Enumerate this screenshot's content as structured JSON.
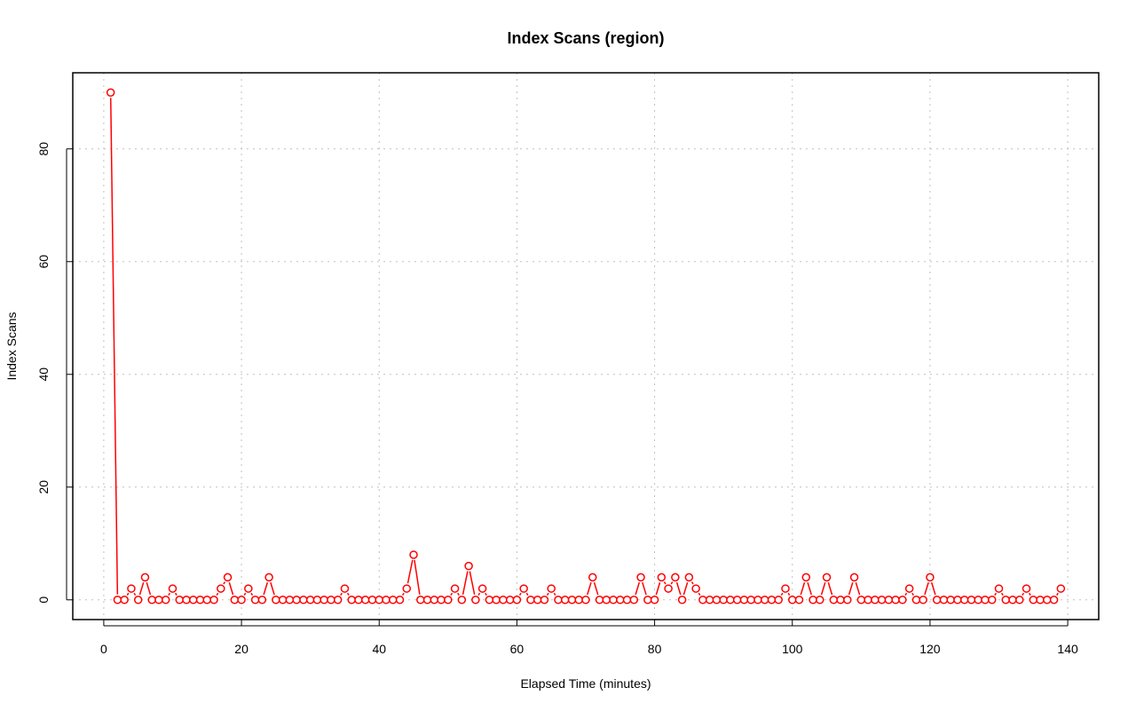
{
  "chart_data": {
    "type": "line",
    "title": "Index Scans (region)",
    "xlabel": "Elapsed Time (minutes)",
    "ylabel": "Index Scans",
    "xlim": [
      -4.5,
      144.5
    ],
    "ylim": [
      -3.5,
      93.5
    ],
    "x_ticks": [
      0,
      20,
      40,
      60,
      80,
      100,
      120,
      140
    ],
    "y_ticks": [
      0,
      20,
      40,
      60,
      80
    ],
    "grid": true,
    "colors": {
      "series": "#ff0000",
      "grid": "#c0c0c0",
      "frame": "#000000"
    },
    "series": [
      {
        "x": [
          1,
          2,
          3,
          4,
          5,
          6,
          7,
          8,
          9,
          10,
          11,
          12,
          13,
          14,
          15,
          16,
          17,
          18,
          19,
          20,
          21,
          22,
          23,
          24,
          25,
          26,
          27,
          28,
          29,
          30,
          31,
          32,
          33,
          34,
          35,
          36,
          37,
          38,
          39,
          40,
          41,
          42,
          43,
          44,
          45,
          46,
          47,
          48,
          49,
          50,
          51,
          52,
          53,
          54,
          55,
          56,
          57,
          58,
          59,
          60,
          61,
          62,
          63,
          64,
          65,
          66,
          67,
          68,
          69,
          70,
          71,
          72,
          73,
          74,
          75,
          76,
          77,
          78,
          79,
          80,
          81,
          82,
          83,
          84,
          85,
          86,
          87,
          88,
          89,
          90,
          91,
          92,
          93,
          94,
          95,
          96,
          97,
          98,
          99,
          100,
          101,
          102,
          103,
          104,
          105,
          106,
          107,
          108,
          109,
          110,
          111,
          112,
          113,
          114,
          115,
          116,
          117,
          118,
          119,
          120,
          121,
          122,
          123,
          124,
          125,
          126,
          127,
          128,
          129,
          130,
          131,
          132,
          133,
          134,
          135,
          136,
          137,
          138,
          139
        ],
        "values": [
          90,
          0,
          0,
          2,
          0,
          4,
          0,
          0,
          0,
          2,
          0,
          0,
          0,
          0,
          0,
          0,
          2,
          4,
          0,
          0,
          2,
          0,
          0,
          4,
          0,
          0,
          0,
          0,
          0,
          0,
          0,
          0,
          0,
          0,
          2,
          0,
          0,
          0,
          0,
          0,
          0,
          0,
          0,
          2,
          8,
          0,
          0,
          0,
          0,
          0,
          2,
          0,
          6,
          0,
          2,
          0,
          0,
          0,
          0,
          0,
          2,
          0,
          0,
          0,
          2,
          0,
          0,
          0,
          0,
          0,
          4,
          0,
          0,
          0,
          0,
          0,
          0,
          4,
          0,
          0,
          4,
          2,
          4,
          0,
          4,
          2,
          0,
          0,
          0,
          0,
          0,
          0,
          0,
          0,
          0,
          0,
          0,
          0,
          2,
          0,
          0,
          4,
          0,
          0,
          4,
          0,
          0,
          0,
          4,
          0,
          0,
          0,
          0,
          0,
          0,
          0,
          2,
          0,
          0,
          4,
          0,
          0,
          0,
          0,
          0,
          0,
          0,
          0,
          0,
          2,
          0,
          0,
          0,
          2,
          0,
          0,
          0,
          0,
          2
        ]
      }
    ]
  }
}
